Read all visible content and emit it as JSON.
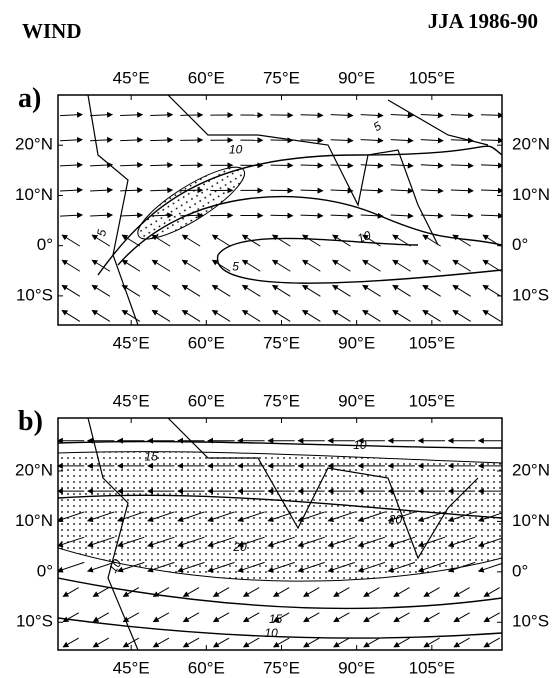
{
  "header": {
    "title": "WIND",
    "period": "JJA 1986-90"
  },
  "panels": [
    {
      "label": "a)",
      "lonlim": [
        30.4,
        119
      ],
      "latlim": [
        -15.8,
        30
      ],
      "lonticks": [
        {
          "value": 45,
          "label": "45°E"
        },
        {
          "value": 60,
          "label": "60°E"
        },
        {
          "value": 75,
          "label": "75°E"
        },
        {
          "value": 90,
          "label": "90°E"
        },
        {
          "value": 105,
          "label": "105°E"
        }
      ],
      "latticks": [
        {
          "value": 20,
          "label": "20°N"
        },
        {
          "value": 10,
          "label": "10°N"
        },
        {
          "value": 0,
          "label": "0°"
        },
        {
          "value": -10,
          "label": "10°S"
        }
      ],
      "contour_labels": [
        "5",
        "10",
        "5",
        "10",
        "5"
      ]
    },
    {
      "label": "b)",
      "lonlim": [
        30.4,
        119
      ],
      "latlim": [
        -15.5,
        30.5
      ],
      "lonticks": [
        {
          "value": 45,
          "label": "45°E"
        },
        {
          "value": 60,
          "label": "60°E"
        },
        {
          "value": 75,
          "label": "75°E"
        },
        {
          "value": 90,
          "label": "90°E"
        },
        {
          "value": 105,
          "label": "105°E"
        }
      ],
      "latticks": [
        {
          "value": 20,
          "label": "20°N"
        },
        {
          "value": 10,
          "label": "10°N"
        },
        {
          "value": 0,
          "label": "0°"
        },
        {
          "value": -10,
          "label": "10°S"
        }
      ],
      "contour_labels": [
        "15",
        "10",
        "20",
        "10",
        "20",
        "15",
        "10"
      ]
    }
  ]
}
